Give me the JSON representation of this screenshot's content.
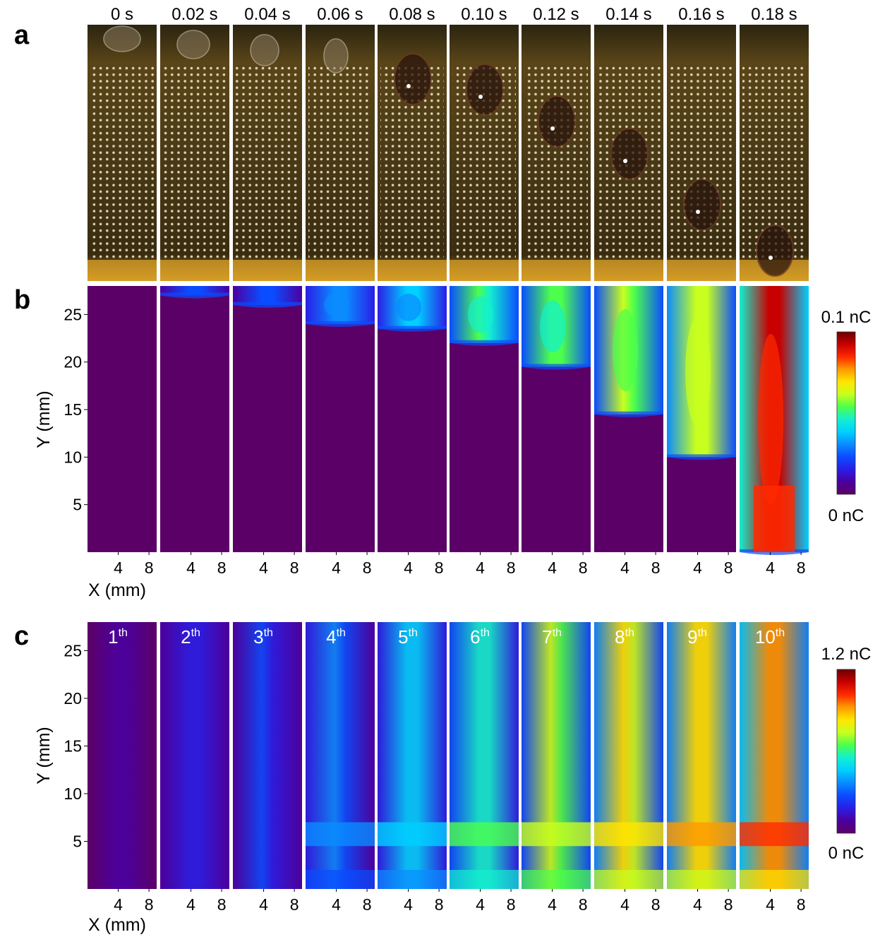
{
  "colors": {
    "background": "#ffffff",
    "charge_scale": [
      "#5b0066",
      "#4b00a0",
      "#2a1ee6",
      "#0a4cff",
      "#0a8cff",
      "#00d0ff",
      "#12f0d0",
      "#4cff4c",
      "#c8ff1e",
      "#ffe600",
      "#ff9a00",
      "#ff2a00",
      "#c80000",
      "#6a0000"
    ]
  },
  "panel_a": {
    "label": "a",
    "times": [
      "0 s",
      "0.02 s",
      "0.04 s",
      "0.06 s",
      "0.08 s",
      "0.10 s",
      "0.12 s",
      "0.14 s",
      "0.16 s",
      "0.18 s"
    ],
    "image_description": "photo frames of a droplet sliding down a pixel-electrode surface"
  },
  "chart_data": [
    {
      "panel": "b",
      "type": "heatmap",
      "small_multiples": [
        "0 s",
        "0.02 s",
        "0.04 s",
        "0.06 s",
        "0.08 s",
        "0.10 s",
        "0.12 s",
        "0.14 s",
        "0.16 s",
        "0.18 s"
      ],
      "xlabel": "X (mm)",
      "ylabel": "Y (mm)",
      "xticks": [
        4,
        8
      ],
      "yticks": [
        5,
        10,
        15,
        20,
        25
      ],
      "ylim": [
        0,
        28
      ],
      "xlim": [
        0,
        9
      ],
      "colorbar": {
        "max_label": "0.1 nC",
        "min_label": "0 nC",
        "min": 0,
        "max": 0.1
      },
      "front_y_mm": [
        28,
        27,
        26,
        24,
        23.5,
        22,
        19.5,
        14.5,
        10,
        0
      ],
      "peak_fraction": [
        0,
        0.22,
        0.25,
        0.32,
        0.38,
        0.5,
        0.55,
        0.58,
        0.65,
        0.95
      ]
    },
    {
      "panel": "c",
      "type": "heatmap",
      "small_multiples": [
        "1th",
        "2th",
        "3th",
        "4th",
        "5th",
        "6th",
        "7th",
        "8th",
        "9th",
        "10th"
      ],
      "ordinal_numbers": [
        "1",
        "2",
        "3",
        "4",
        "5",
        "6",
        "7",
        "8",
        "9",
        "10"
      ],
      "ordinal_suffix": "th",
      "xlabel": "X (mm)",
      "ylabel": "Y (mm)",
      "xticks": [
        4,
        8
      ],
      "yticks": [
        5,
        10,
        15,
        20,
        25
      ],
      "ylim": [
        0,
        28
      ],
      "xlim": [
        0,
        9
      ],
      "colorbar": {
        "max_label": "1.2 nC",
        "min_label": "0 nC",
        "min": 0,
        "max": 1.2
      },
      "peak_fraction": [
        0.08,
        0.15,
        0.2,
        0.28,
        0.38,
        0.48,
        0.58,
        0.66,
        0.72,
        0.78
      ]
    }
  ]
}
